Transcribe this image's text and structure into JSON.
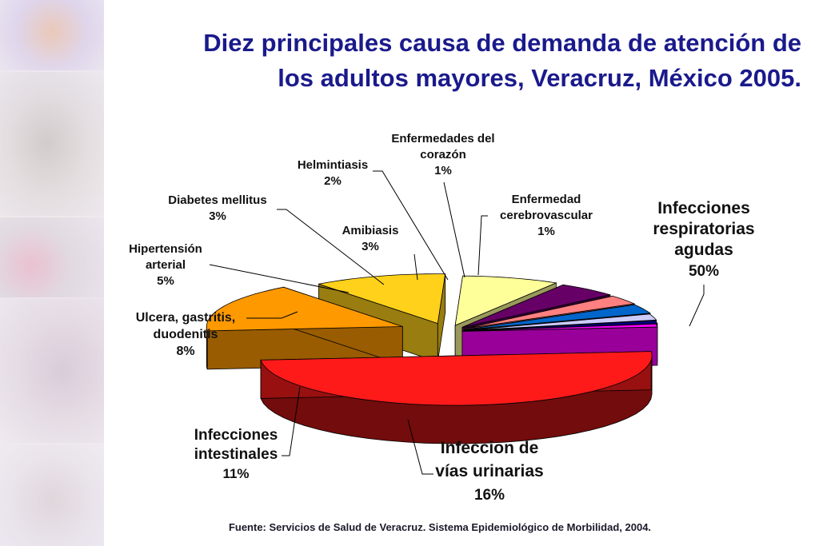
{
  "title_lines": [
    "Diez principales causa de demanda de atención de",
    "los adultos mayores, Veracruz, México 2005."
  ],
  "source": "Fuente: Servicios de Salud de Veracruz. Sistema Epidemiológico de Morbilidad, 2004.",
  "chart_data": {
    "type": "pie",
    "title": "Diez principales causa de demanda de atención de los adultos mayores, Veracruz, México 2005.",
    "unit": "%",
    "slices": [
      {
        "label": [
          "Infecciones",
          "respiratorias",
          "agudas"
        ],
        "value": 50,
        "pct": "50%",
        "color": "#ff1a1a"
      },
      {
        "label": [
          "Infeccion de",
          "vías urinarias"
        ],
        "value": 16,
        "pct": "16%",
        "color": "#ff9900"
      },
      {
        "label": [
          "Infecciones",
          "intestinales"
        ],
        "value": 11,
        "pct": "11%",
        "color": "#ffd11a"
      },
      {
        "label": [
          "Ulcera, gastritis,",
          "duodenitis"
        ],
        "value": 8,
        "pct": "8%",
        "color": "#ffff99"
      },
      {
        "label": [
          "Hipertensión",
          "arterial"
        ],
        "value": 5,
        "pct": "5%",
        "color": "#660066"
      },
      {
        "label": [
          "Diabetes mellitus"
        ],
        "value": 3,
        "pct": "3%",
        "color": "#ff8080"
      },
      {
        "label": [
          "Amibiasis"
        ],
        "value": 3,
        "pct": "3%",
        "color": "#0066cc"
      },
      {
        "label": [
          "Helmintiasis"
        ],
        "value": 2,
        "pct": "2%",
        "color": "#ccccff"
      },
      {
        "label": [
          "Enfermedades del",
          "corazón"
        ],
        "value": 1,
        "pct": "1%",
        "color": "#000080"
      },
      {
        "label": [
          "Enfermedad",
          "cerebrovascular"
        ],
        "value": 1,
        "pct": "1%",
        "color": "#ff00ff"
      }
    ]
  }
}
